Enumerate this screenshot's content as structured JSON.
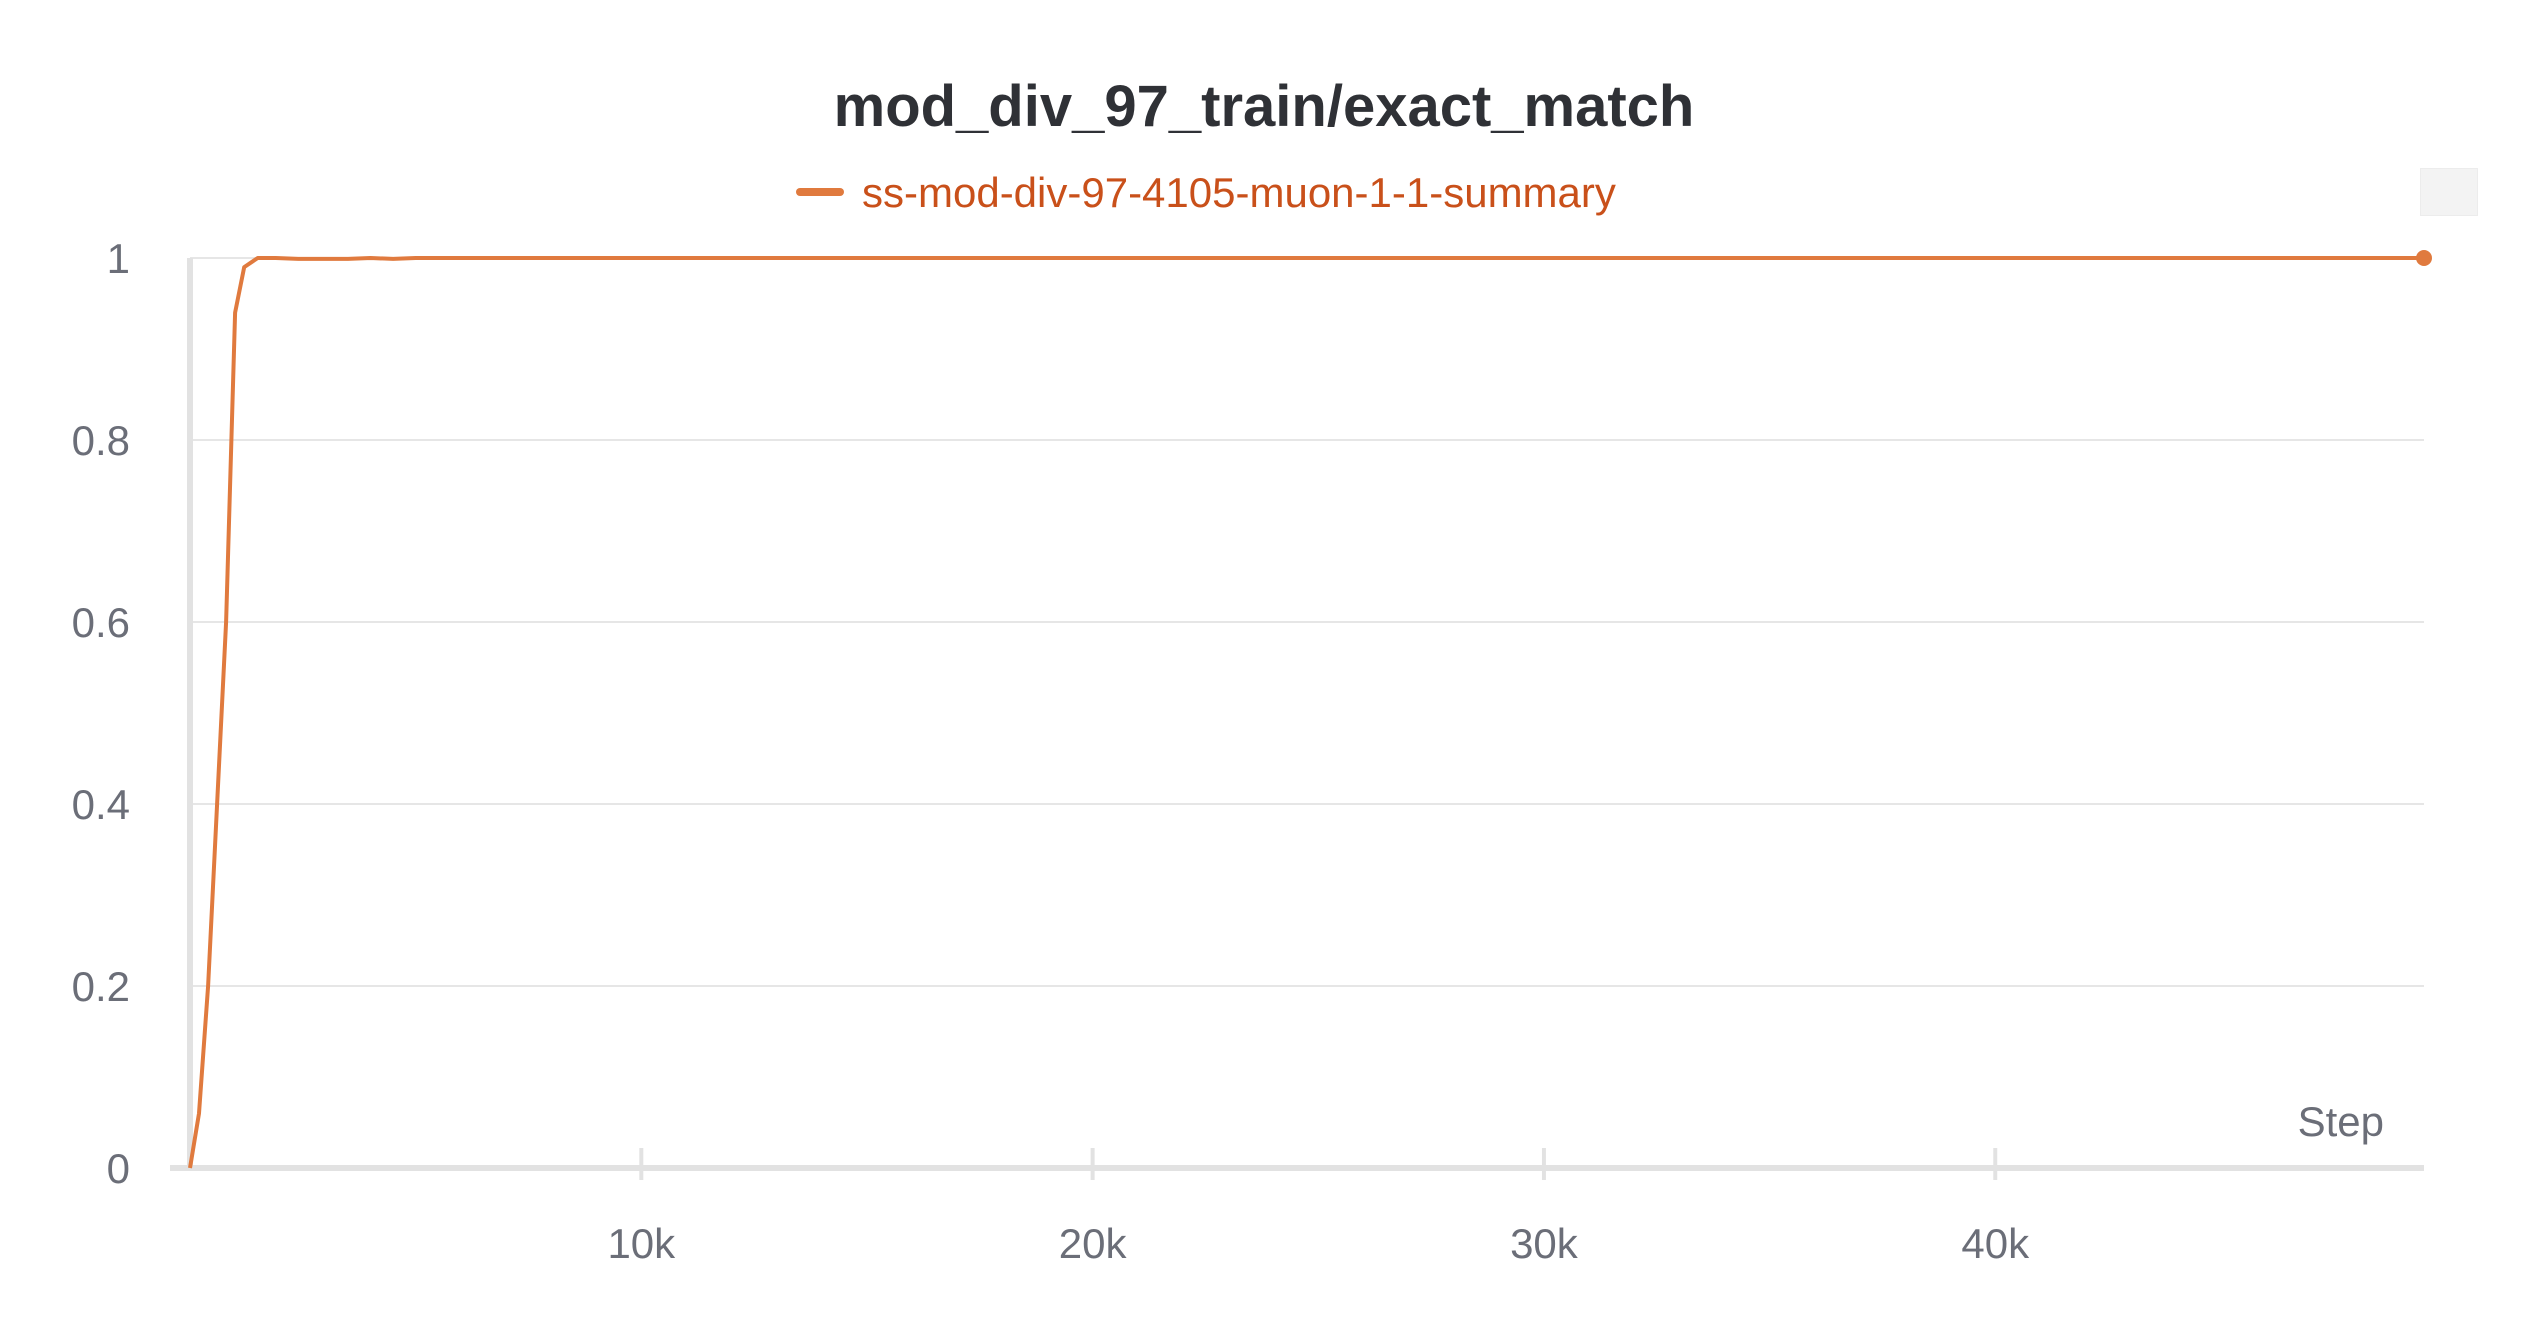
{
  "chart_data": {
    "type": "line",
    "title": "mod_div_97_train/exact_match",
    "xlabel": "Step",
    "ylabel": "",
    "xlim": [
      0,
      49500
    ],
    "ylim": [
      0,
      1
    ],
    "x_ticks": [
      {
        "value": 10000,
        "label": "10k"
      },
      {
        "value": 20000,
        "label": "20k"
      },
      {
        "value": 30000,
        "label": "30k"
      },
      {
        "value": 40000,
        "label": "40k"
      }
    ],
    "y_ticks": [
      {
        "value": 0,
        "label": "0"
      },
      {
        "value": 0.2,
        "label": "0.2"
      },
      {
        "value": 0.4,
        "label": "0.4"
      },
      {
        "value": 0.6,
        "label": "0.6"
      },
      {
        "value": 0.8,
        "label": "0.8"
      },
      {
        "value": 1,
        "label": "1"
      }
    ],
    "grid": true,
    "legend_position": "top-center",
    "series": [
      {
        "name": "ss-mod-div-97-4105-muon-1-1-summary",
        "color": "#e07a3e",
        "x": [
          0,
          200,
          400,
          600,
          800,
          1000,
          1200,
          1500,
          1900,
          2400,
          3000,
          3500,
          4000,
          4500,
          5000,
          6000,
          8000,
          10000,
          12000,
          15000,
          20000,
          25000,
          30000,
          35000,
          40000,
          45000,
          49500
        ],
        "y": [
          0,
          0.06,
          0.2,
          0.4,
          0.6,
          0.94,
          0.99,
          1,
          1,
          0.999,
          0.999,
          0.999,
          1,
          0.999,
          1,
          1,
          1,
          1,
          1,
          1,
          1,
          1,
          1,
          1,
          1,
          1,
          1
        ]
      }
    ]
  }
}
